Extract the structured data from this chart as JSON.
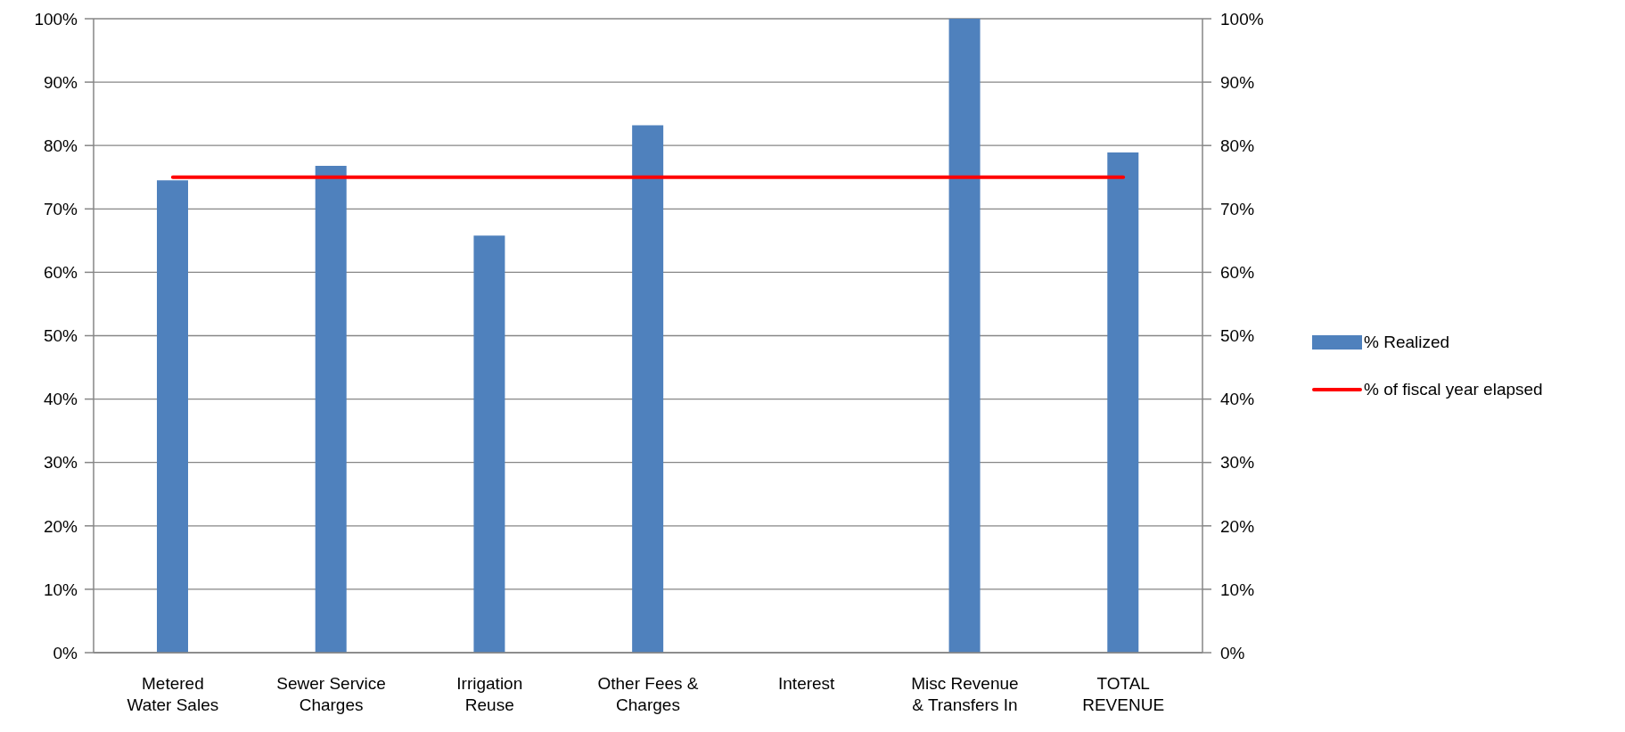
{
  "chart_data": {
    "type": "bar",
    "categories": [
      "Metered\nWater Sales",
      "Sewer Service\nCharges",
      "Irrigation\nReuse",
      "Other Fees &\nCharges",
      "Interest",
      "Misc Revenue\n& Transfers In",
      "TOTAL\nREVENUE"
    ],
    "series": [
      {
        "name": "% Realized",
        "color": "#4f81bd",
        "values": [
          74.5,
          76.8,
          65.8,
          83.2,
          0,
          100,
          78.9
        ]
      },
      {
        "name": "% of fiscal year elapsed",
        "type": "line",
        "color": "#ff0000",
        "values": [
          75,
          75,
          75,
          75,
          75,
          75,
          75
        ]
      }
    ],
    "ylim": [
      0,
      100
    ],
    "yticks": [
      {
        "value": 0,
        "label": "0%"
      },
      {
        "value": 10,
        "label": "10%"
      },
      {
        "value": 20,
        "label": "20%"
      },
      {
        "value": 30,
        "label": "30%"
      },
      {
        "value": 40,
        "label": "40%"
      },
      {
        "value": 50,
        "label": "50%"
      },
      {
        "value": 60,
        "label": "60%"
      },
      {
        "value": 70,
        "label": "70%"
      },
      {
        "value": 80,
        "label": "80%"
      },
      {
        "value": 90,
        "label": "90%"
      },
      {
        "value": 100,
        "label": "100%"
      }
    ],
    "y2lim": [
      0,
      100
    ],
    "y2ticks": [
      {
        "value": 0,
        "label": "0%"
      },
      {
        "value": 10,
        "label": "10%"
      },
      {
        "value": 20,
        "label": "20%"
      },
      {
        "value": 30,
        "label": "30%"
      },
      {
        "value": 40,
        "label": "40%"
      },
      {
        "value": 50,
        "label": "50%"
      },
      {
        "value": 60,
        "label": "60%"
      },
      {
        "value": 70,
        "label": "70%"
      },
      {
        "value": 80,
        "label": "80%"
      },
      {
        "value": 90,
        "label": "90%"
      },
      {
        "value": 100,
        "label": "100%"
      }
    ],
    "grid": "y",
    "legend": "right"
  }
}
